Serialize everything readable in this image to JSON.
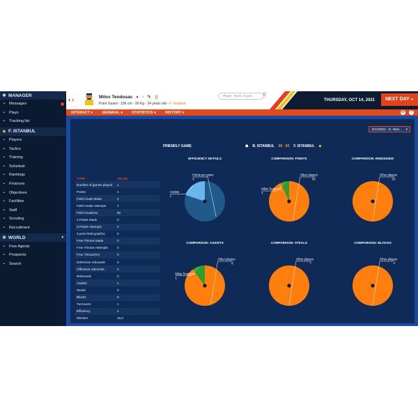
{
  "sidebar": {
    "manager": "MANAGER",
    "manager_items": [
      {
        "label": "Messages",
        "icon": "envelope-icon",
        "badge": true
      },
      {
        "label": "Plays",
        "icon": "clipboard-icon"
      },
      {
        "label": "Tracking list",
        "icon": "star-icon"
      }
    ],
    "club": "F. ISTANBUL",
    "club_items": [
      {
        "label": "Players",
        "icon": "players-icon"
      },
      {
        "label": "Tactics",
        "icon": "tactics-icon"
      },
      {
        "label": "Training",
        "icon": "training-icon"
      },
      {
        "label": "Schedule",
        "icon": "calendar-icon"
      },
      {
        "label": "Rankings",
        "icon": "rankings-icon"
      },
      {
        "label": "Finances",
        "icon": "finances-icon"
      },
      {
        "label": "Objectives",
        "icon": "objectives-icon"
      },
      {
        "label": "Facilities",
        "icon": "facilities-icon"
      },
      {
        "label": "Staff",
        "icon": "staff-icon"
      },
      {
        "label": "Scouting",
        "icon": "scouting-icon"
      },
      {
        "label": "Recruitment",
        "icon": "recruitment-icon"
      }
    ],
    "world": "WORLD",
    "world_items": [
      {
        "label": "Free Agents",
        "icon": "free-agents-icon"
      },
      {
        "label": "Prospects",
        "icon": "prospects-icon"
      },
      {
        "label": "Search",
        "icon": "search-icon"
      }
    ]
  },
  "header": {
    "player_name": "Milos Teodosac",
    "player_meta": "Point Guard - 196 cm - 90 Kg - 34 years old - ",
    "player_team": "F. Istanbul",
    "search_placeholder": "Player, Team, Coach...",
    "date": "THURSDAY, OCT 14, 2021",
    "next_day": "NEXT DAY"
  },
  "menu": [
    "INTERACT",
    "GENERAL",
    "STATISTICS",
    "HISTORY"
  ],
  "main": {
    "match_select": "8/13/2021 - B. Istan...",
    "match_type": "FRIENDLY GAME",
    "team1": "B. ISTANBUL",
    "score": "65 - 60",
    "team2": "F. ISTANBUL"
  },
  "stats": {
    "headers": [
      "TYPE",
      "VALUE"
    ],
    "rows": [
      [
        "Number of games played",
        "1"
      ],
      [
        "Points",
        "4"
      ],
      [
        "Field Goals Made",
        "2"
      ],
      [
        "Field Goals Attempts",
        "4"
      ],
      [
        "Field Goals(%)",
        "50"
      ],
      [
        "3 Points Made",
        "0"
      ],
      [
        "3 Points Attempts",
        "0"
      ],
      [
        "3 point field goal(%)",
        "0"
      ],
      [
        "Free Throws Made",
        "0"
      ],
      [
        "Free Throws Attempts",
        "0"
      ],
      [
        "Free Throws(%)",
        "0"
      ],
      [
        "Defensive rebounds",
        "0"
      ],
      [
        "Offensive rebounds",
        "0"
      ],
      [
        "Rebounds",
        "0"
      ],
      [
        "Assists",
        "1"
      ],
      [
        "Steals",
        "0"
      ],
      [
        "Blocks",
        "0"
      ],
      [
        "Turnovers",
        "1"
      ],
      [
        "Efficiency",
        "2"
      ],
      [
        "Minutes",
        "15,3"
      ]
    ]
  },
  "colors": {
    "orange": "#ff7f0e",
    "green": "#2ca02c",
    "dark_blue": "#1f5a8a",
    "light_blue": "#6cb4ee"
  },
  "chart_data": [
    {
      "type": "pie",
      "title": "EFFICIENCY DETAILS",
      "series": [
        {
          "name": "Points per game",
          "value": 4,
          "color": "#1f5a8a"
        },
        {
          "name": "Assists",
          "value": 1,
          "color": "#6cb4ee"
        }
      ]
    },
    {
      "type": "pie",
      "title": "COMPARISON: POINTS",
      "series": [
        {
          "name": "Other players",
          "value": 56,
          "color": "#ff7f0e"
        },
        {
          "name": "Milos Teodosac",
          "value": 4,
          "color": "#2ca02c"
        }
      ]
    },
    {
      "type": "pie",
      "title": "COMPARISON: REBOUNDS",
      "series": [
        {
          "name": "Other players",
          "value": 26,
          "color": "#ff7f0e"
        }
      ]
    },
    {
      "type": "pie",
      "title": "COMPARISON: ASSISTS",
      "series": [
        {
          "name": "Other players",
          "value": 9,
          "color": "#ff7f0e"
        },
        {
          "name": "Milos Teodosac",
          "value": 1,
          "color": "#2ca02c"
        }
      ]
    },
    {
      "type": "pie",
      "title": "COMPARISON: STEALS",
      "series": [
        {
          "name": "Other players",
          "value": 7,
          "color": "#ff7f0e"
        }
      ]
    },
    {
      "type": "pie",
      "title": "COMPARISON: BLOCKS",
      "series": [
        {
          "name": "Other players",
          "value": 4,
          "color": "#ff7f0e"
        }
      ]
    }
  ]
}
